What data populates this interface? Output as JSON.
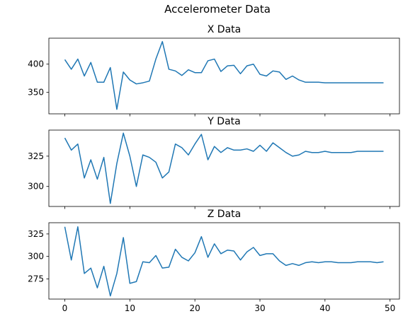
{
  "figure": {
    "suptitle": "Accelerometer Data"
  },
  "chart_data": [
    {
      "type": "line",
      "title": "X Data",
      "xlabel": "",
      "ylabel": "",
      "xlim": [
        -2.45,
        51.45
      ],
      "ylim": [
        312,
        446
      ],
      "xticks": [
        0,
        10,
        20,
        30,
        40,
        50
      ],
      "yticks": [
        350,
        400
      ],
      "show_xtick_labels": false,
      "color": "#1f77b4",
      "x": [
        0,
        1,
        2,
        3,
        4,
        5,
        6,
        7,
        8,
        9,
        10,
        11,
        12,
        13,
        14,
        15,
        16,
        17,
        18,
        19,
        20,
        21,
        22,
        23,
        24,
        25,
        26,
        27,
        28,
        29,
        30,
        31,
        32,
        33,
        34,
        35,
        36,
        37,
        38,
        39,
        40,
        41,
        42,
        43,
        44,
        45,
        46,
        47,
        48,
        49
      ],
      "values": [
        408,
        391,
        409,
        379,
        403,
        368,
        368,
        394,
        320,
        386,
        372,
        365,
        367,
        370,
        409,
        440,
        391,
        388,
        380,
        390,
        385,
        385,
        406,
        409,
        387,
        397,
        398,
        383,
        397,
        400,
        382,
        379,
        388,
        386,
        373,
        379,
        372,
        368,
        368,
        368,
        367,
        367,
        367,
        367,
        367,
        367,
        367,
        367,
        367,
        367
      ]
    },
    {
      "type": "line",
      "title": "Y Data",
      "xlabel": "",
      "ylabel": "",
      "xlim": [
        -2.45,
        51.45
      ],
      "ylim": [
        283.5,
        346.5
      ],
      "xticks": [
        0,
        10,
        20,
        30,
        40,
        50
      ],
      "yticks": [
        300,
        325
      ],
      "show_xtick_labels": false,
      "color": "#1f77b4",
      "x": [
        0,
        1,
        2,
        3,
        4,
        5,
        6,
        7,
        8,
        9,
        10,
        11,
        12,
        13,
        14,
        15,
        16,
        17,
        18,
        19,
        20,
        21,
        22,
        23,
        24,
        25,
        26,
        27,
        28,
        29,
        30,
        31,
        32,
        33,
        34,
        35,
        36,
        37,
        38,
        39,
        40,
        41,
        42,
        43,
        44,
        45,
        46,
        47,
        48,
        49
      ],
      "values": [
        340,
        330,
        335,
        307,
        322,
        306,
        324,
        286,
        319,
        344,
        325,
        300,
        326,
        324,
        320,
        307,
        312,
        335,
        332,
        326,
        335,
        343,
        322,
        333,
        328,
        332,
        330,
        330,
        331,
        329,
        334,
        329,
        336,
        332,
        328,
        325,
        326,
        329,
        328,
        328,
        329,
        328,
        328,
        328,
        328,
        329,
        329,
        329,
        329,
        329
      ]
    },
    {
      "type": "line",
      "title": "Z Data",
      "xlabel": "",
      "ylabel": "",
      "xlim": [
        -2.45,
        51.45
      ],
      "ylim": [
        252.5,
        337.5
      ],
      "xticks": [
        0,
        10,
        20,
        30,
        40,
        50
      ],
      "yticks": [
        275,
        300,
        325
      ],
      "show_xtick_labels": true,
      "color": "#1f77b4",
      "x": [
        0,
        1,
        2,
        3,
        4,
        5,
        6,
        7,
        8,
        9,
        10,
        11,
        12,
        13,
        14,
        15,
        16,
        17,
        18,
        19,
        20,
        21,
        22,
        23,
        24,
        25,
        26,
        27,
        28,
        29,
        30,
        31,
        32,
        33,
        34,
        35,
        36,
        37,
        38,
        39,
        40,
        41,
        42,
        43,
        44,
        45,
        46,
        47,
        48,
        49
      ],
      "values": [
        333,
        296,
        333,
        281,
        287,
        265,
        289,
        256,
        281,
        321,
        270,
        272,
        294,
        293,
        301,
        287,
        288,
        308,
        299,
        295,
        304,
        322,
        299,
        314,
        303,
        307,
        306,
        296,
        305,
        310,
        301,
        303,
        303,
        295,
        290,
        292,
        290,
        293,
        294,
        293,
        294,
        294,
        293,
        293,
        293,
        294,
        294,
        294,
        293,
        294
      ]
    }
  ]
}
